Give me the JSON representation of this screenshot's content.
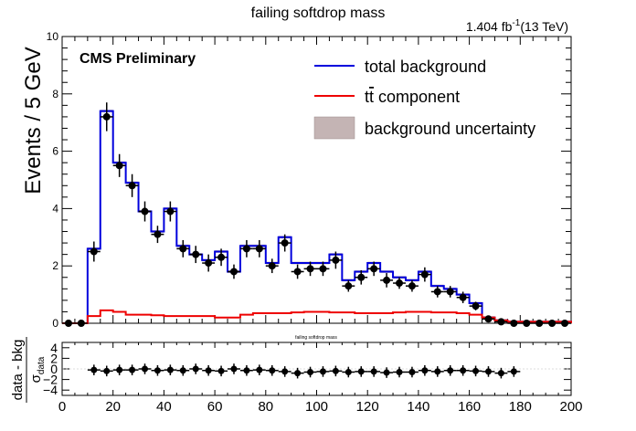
{
  "chart_data": {
    "type": "histogram",
    "title": "failing softdrop mass",
    "lumi_label": "1.404 fb",
    "lumi_exponent": "-1",
    "energy_label": "(13 TeV)",
    "cms_label": "CMS Preliminary",
    "ylabel": "Events / 5 GeV",
    "xlim": [
      0,
      200
    ],
    "ylim": [
      0,
      10
    ],
    "x_ticks": [
      "0",
      "20",
      "40",
      "60",
      "80",
      "100",
      "120",
      "140",
      "160",
      "180",
      "200"
    ],
    "y_ticks": [
      "0",
      "2",
      "4",
      "6",
      "8",
      "10"
    ],
    "legend": {
      "placement": "top-right",
      "entries": [
        {
          "label": "total background",
          "color": "#0000dd"
        },
        {
          "label_main": "t",
          "label_bar": "t",
          "label_rest": " component",
          "color": "#ee0000"
        },
        {
          "label": "background uncertainty",
          "color": "#b8a8a8"
        }
      ]
    },
    "bin_width": 5,
    "bin_edges_start": 0,
    "total_background": [
      0,
      0,
      2.6,
      7.4,
      5.6,
      4.9,
      3.9,
      3.2,
      4.0,
      2.7,
      2.4,
      2.2,
      2.5,
      1.8,
      2.7,
      2.7,
      2.1,
      3.0,
      2.1,
      2.1,
      2.1,
      2.4,
      1.5,
      1.8,
      2.1,
      1.8,
      1.6,
      1.5,
      1.8,
      1.3,
      1.2,
      1.0,
      0.7,
      0.2,
      0.1,
      0.05,
      0.05,
      0.05,
      0.05,
      0.05
    ],
    "ttbar_component": [
      0,
      0,
      0.25,
      0.45,
      0.4,
      0.3,
      0.3,
      0.28,
      0.25,
      0.25,
      0.25,
      0.25,
      0.2,
      0.2,
      0.3,
      0.35,
      0.35,
      0.35,
      0.38,
      0.4,
      0.4,
      0.38,
      0.38,
      0.35,
      0.35,
      0.35,
      0.38,
      0.4,
      0.4,
      0.38,
      0.38,
      0.35,
      0.3,
      0.2,
      0.1,
      0.05,
      0.05,
      0.05,
      0.05,
      0.05
    ],
    "data_points": {
      "x": [
        2.5,
        7.5,
        12.5,
        17.5,
        22.5,
        27.5,
        32.5,
        37.5,
        42.5,
        47.5,
        52.5,
        57.5,
        62.5,
        67.5,
        72.5,
        77.5,
        82.5,
        87.5,
        92.5,
        97.5,
        102.5,
        107.5,
        112.5,
        117.5,
        122.5,
        127.5,
        132.5,
        137.5,
        142.5,
        147.5,
        152.5,
        157.5,
        162.5,
        167.5,
        172.5,
        177.5,
        182.5,
        187.5,
        192.5,
        197.5
      ],
      "y": [
        0,
        0,
        2.5,
        7.2,
        5.5,
        4.8,
        3.9,
        3.1,
        3.9,
        2.6,
        2.4,
        2.1,
        2.3,
        1.8,
        2.6,
        2.6,
        2.0,
        2.8,
        1.8,
        1.9,
        1.9,
        2.2,
        1.3,
        1.6,
        1.9,
        1.5,
        1.4,
        1.3,
        1.7,
        1.1,
        1.1,
        0.9,
        0.6,
        0.15,
        0.05,
        0,
        0,
        0,
        0,
        0
      ],
      "err": [
        0,
        0,
        0.35,
        0.5,
        0.4,
        0.4,
        0.35,
        0.3,
        0.35,
        0.3,
        0.3,
        0.3,
        0.3,
        0.25,
        0.3,
        0.3,
        0.25,
        0.3,
        0.25,
        0.25,
        0.25,
        0.3,
        0.2,
        0.25,
        0.25,
        0.25,
        0.2,
        0.2,
        0.25,
        0.2,
        0.2,
        0.2,
        0.15,
        0.1,
        0,
        0,
        0,
        0,
        0,
        0
      ]
    },
    "ratio_panel": {
      "title": "failing softdrop mass",
      "ylabel_top": "data - bkg",
      "ylabel_sigma": "σ",
      "ylabel_sub": "data",
      "ylim": [
        -5,
        5
      ],
      "y_ticks": [
        "4",
        "2",
        "0",
        "−2",
        "−4"
      ],
      "y_tick_values": [
        4,
        2,
        0,
        -2,
        -4
      ],
      "x": [
        12.5,
        17.5,
        22.5,
        27.5,
        32.5,
        37.5,
        42.5,
        47.5,
        52.5,
        57.5,
        62.5,
        67.5,
        72.5,
        77.5,
        82.5,
        87.5,
        92.5,
        97.5,
        102.5,
        107.5,
        112.5,
        117.5,
        122.5,
        127.5,
        132.5,
        137.5,
        142.5,
        147.5,
        152.5,
        157.5,
        162.5,
        167.5,
        172.5,
        177.5
      ],
      "y": [
        -0.2,
        -0.4,
        -0.2,
        -0.2,
        0,
        -0.3,
        -0.2,
        -0.3,
        0,
        -0.3,
        -0.4,
        0,
        -0.3,
        -0.2,
        -0.3,
        -0.5,
        -0.8,
        -0.6,
        -0.5,
        -0.4,
        -0.6,
        -0.5,
        -0.5,
        -0.7,
        -0.6,
        -0.6,
        -0.3,
        -0.5,
        -0.3,
        -0.3,
        -0.4,
        -0.5,
        -0.8,
        -0.5
      ],
      "err": [
        1,
        1,
        1,
        1,
        1,
        1,
        1,
        1,
        1,
        1,
        1,
        1,
        1,
        1,
        1,
        1,
        1,
        1,
        1,
        1,
        1,
        1,
        1,
        1,
        1,
        1,
        1,
        1,
        1,
        1,
        1,
        1,
        1,
        1
      ]
    }
  }
}
